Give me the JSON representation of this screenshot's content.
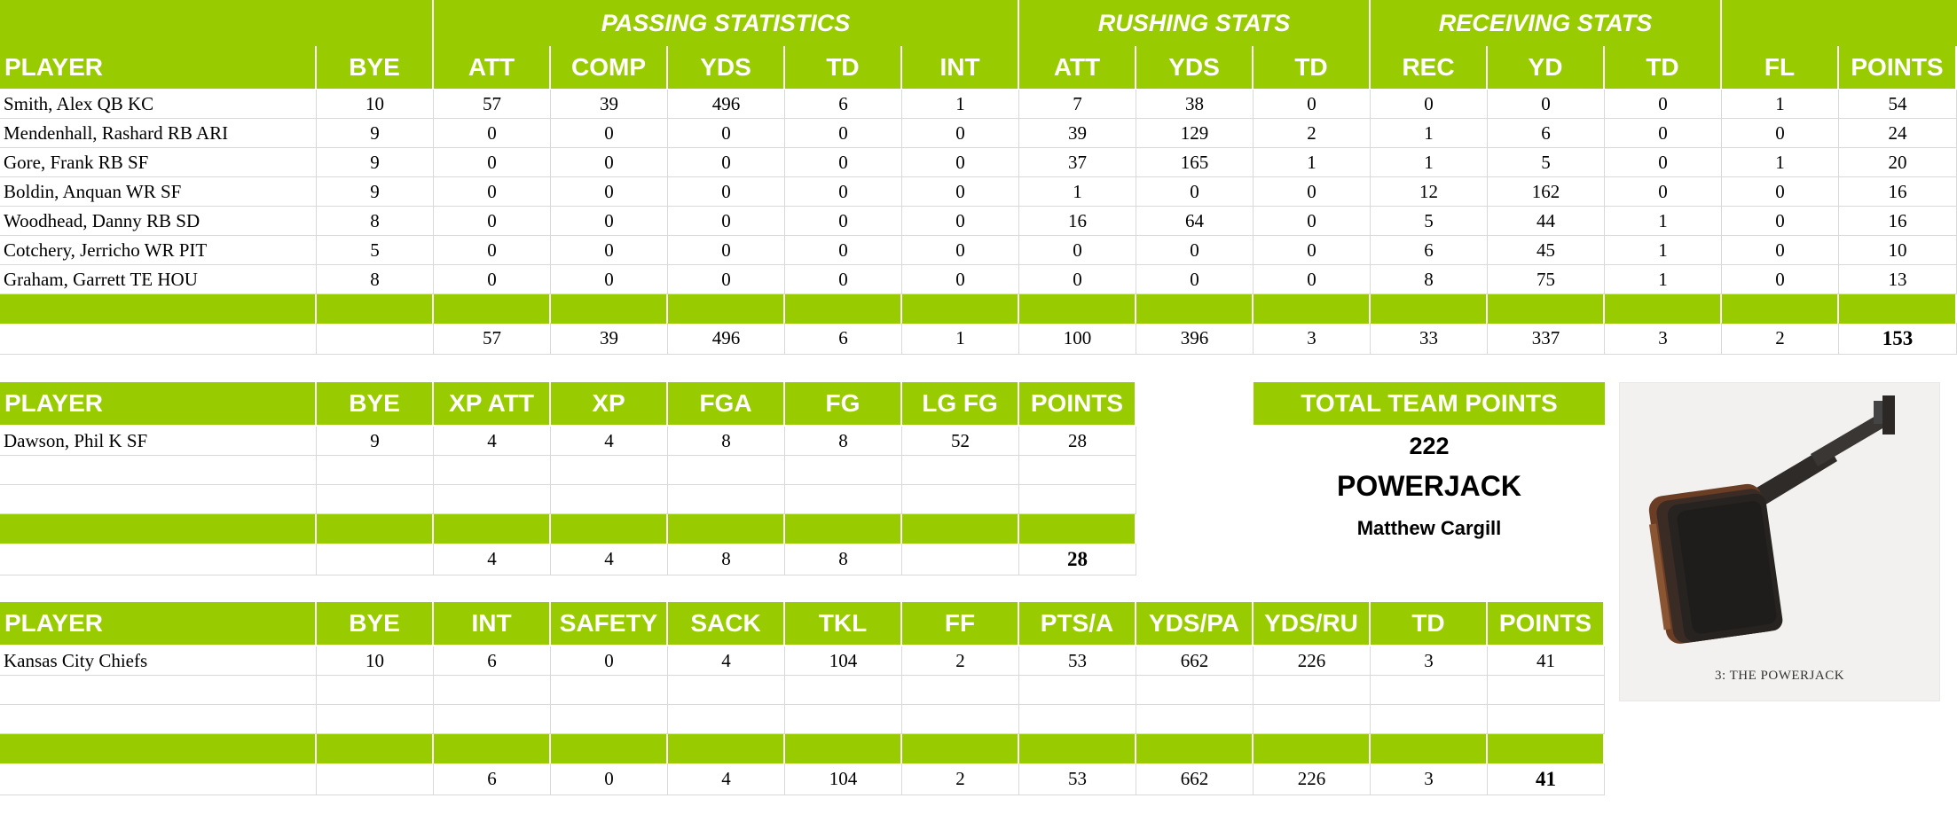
{
  "colors": {
    "accent": "#99cc00",
    "text": "#000000",
    "header_text": "#ffffff"
  },
  "offense": {
    "groups": [
      "PASSING STATISTICS",
      "RUSHING STATS",
      "RECEIVING STATS"
    ],
    "headers": [
      "PLAYER",
      "BYE",
      "ATT",
      "COMP",
      "YDS",
      "TD",
      "INT",
      "ATT",
      "YDS",
      "TD",
      "REC",
      "YD",
      "TD",
      "FL",
      "POINTS"
    ],
    "rows": [
      [
        "Smith, Alex QB KC",
        "10",
        "57",
        "39",
        "496",
        "6",
        "1",
        "7",
        "38",
        "0",
        "0",
        "0",
        "0",
        "1",
        "54"
      ],
      [
        "Mendenhall, Rashard RB ARI",
        "9",
        "0",
        "0",
        "0",
        "0",
        "0",
        "39",
        "129",
        "2",
        "1",
        "6",
        "0",
        "0",
        "24"
      ],
      [
        "Gore, Frank RB SF",
        "9",
        "0",
        "0",
        "0",
        "0",
        "0",
        "37",
        "165",
        "1",
        "1",
        "5",
        "0",
        "1",
        "20"
      ],
      [
        "Boldin, Anquan WR SF",
        "9",
        "0",
        "0",
        "0",
        "0",
        "0",
        "1",
        "0",
        "0",
        "12",
        "162",
        "0",
        "0",
        "16"
      ],
      [
        "Woodhead, Danny RB SD",
        "8",
        "0",
        "0",
        "0",
        "0",
        "0",
        "16",
        "64",
        "0",
        "5",
        "44",
        "1",
        "0",
        "16"
      ],
      [
        "Cotchery, Jerricho WR PIT",
        "5",
        "0",
        "0",
        "0",
        "0",
        "0",
        "0",
        "0",
        "0",
        "6",
        "45",
        "1",
        "0",
        "10"
      ],
      [
        "Graham, Garrett TE HOU",
        "8",
        "0",
        "0",
        "0",
        "0",
        "0",
        "0",
        "0",
        "0",
        "8",
        "75",
        "1",
        "0",
        "13"
      ]
    ],
    "totals": [
      "",
      "",
      "57",
      "39",
      "496",
      "6",
      "1",
      "100",
      "396",
      "3",
      "33",
      "337",
      "3",
      "2",
      "153"
    ]
  },
  "kicker": {
    "headers": [
      "PLAYER",
      "BYE",
      "XP ATT",
      "XP",
      "FGA",
      "FG",
      "LG FG",
      "POINTS"
    ],
    "rows": [
      [
        "Dawson, Phil K SF",
        "9",
        "4",
        "4",
        "8",
        "8",
        "52",
        "28"
      ],
      [
        "",
        "",
        "",
        "",
        "",
        "",
        "",
        ""
      ],
      [
        "",
        "",
        "",
        "",
        "",
        "",
        "",
        ""
      ]
    ],
    "totals": [
      "",
      "",
      "4",
      "4",
      "8",
      "8",
      "",
      "28"
    ]
  },
  "defense": {
    "headers": [
      "PLAYER",
      "BYE",
      "INT",
      "SAFETY",
      "SACK",
      "TKL",
      "FF",
      "PTS/A",
      "YDS/PA",
      "YDS/RU",
      "TD",
      "POINTS"
    ],
    "rows": [
      [
        "Kansas City Chiefs",
        "10",
        "6",
        "0",
        "4",
        "104",
        "2",
        "53",
        "662",
        "226",
        "3",
        "41"
      ],
      [
        "",
        "",
        "",
        "",
        "",
        "",
        "",
        "",
        "",
        "",
        "",
        ""
      ],
      [
        "",
        "",
        "",
        "",
        "",
        "",
        "",
        "",
        "",
        "",
        "",
        ""
      ]
    ],
    "totals": [
      "",
      "",
      "6",
      "0",
      "4",
      "104",
      "2",
      "53",
      "662",
      "226",
      "3",
      "41"
    ]
  },
  "summary": {
    "label": "TOTAL TEAM POINTS",
    "points": "222",
    "team_name": "POWERJACK",
    "owner": "Matthew Cargill",
    "photo_caption": "3: THE POWERJACK"
  }
}
